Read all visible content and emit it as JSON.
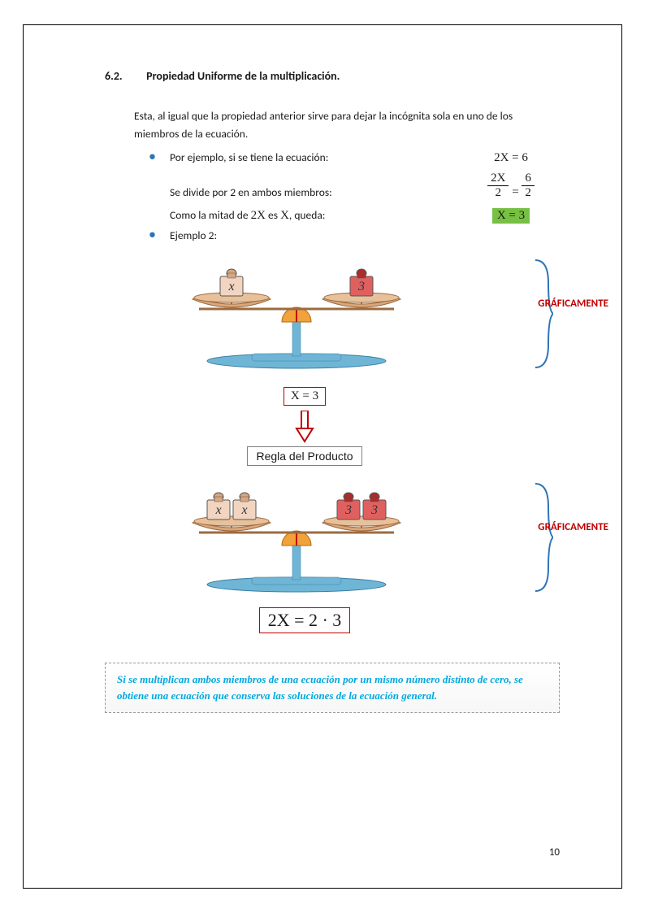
{
  "heading": {
    "number": "6.2.",
    "title": "Propiedad Uniforme de la multiplicación."
  },
  "intro": "Esta, al igual que la propiedad anterior sirve para dejar la incógnita sola en uno de los miembros de la ecuación.",
  "bullets": {
    "line1_text": "Por ejemplo, si se tiene la ecuación:",
    "line1_eq": "2X = 6",
    "line2_text": "Se divide por 2 en ambos miembros:",
    "frac_left_top": "2X",
    "frac_left_bot": "2",
    "frac_right_top": "6",
    "frac_right_bot": "2",
    "line3_pre": "Como la mitad de ",
    "line3_mid": "2X",
    "line3_mid2": " es ",
    "line3_x": "X",
    "line3_post": ", queda:",
    "line3_result": "X = 3",
    "ejemplo2": "Ejemplo 2:"
  },
  "graf_label": "GRÁFICAMENTE",
  "scale1": {
    "left_weights": [
      {
        "label": "x",
        "color": "#f2d5c0",
        "cap": "#d9a77d"
      }
    ],
    "right_weights": [
      {
        "label": "3",
        "color": "#e06060",
        "cap": "#b02a2a"
      }
    ],
    "result": "X = 3"
  },
  "regla_label": "Regla del Producto",
  "scale2": {
    "left_weights": [
      {
        "label": "x",
        "color": "#f2d5c0",
        "cap": "#d9a77d"
      },
      {
        "label": "x",
        "color": "#f2d5c0",
        "cap": "#d9a77d"
      }
    ],
    "right_weights": [
      {
        "label": "3",
        "color": "#e06060",
        "cap": "#b02a2a"
      },
      {
        "label": "3",
        "color": "#e06060",
        "cap": "#b02a2a"
      }
    ],
    "result": "2X = 2 · 3"
  },
  "callout": "Si se multiplican ambos miembros de una ecuación por un mismo número distinto de cero, se obtiene una ecuación que conserva las soluciones de la ecuación general.",
  "page_number": "10",
  "colors": {
    "bullet": "#2e74b5",
    "highlight_bg": "#77c043",
    "accent_red": "#c00000",
    "brace_blue": "#2e74b5",
    "callout_text": "#00a8e0",
    "base_blue": "#6fb5d6",
    "dial": "#f2a23a"
  }
}
